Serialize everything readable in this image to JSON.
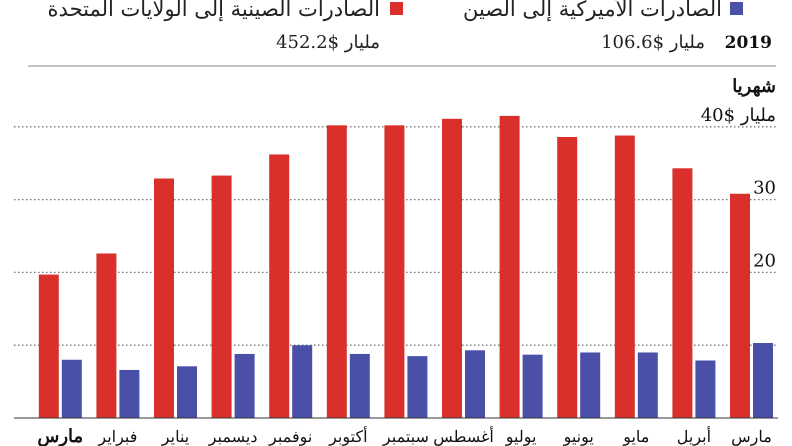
{
  "legend": {
    "us_exports": "الصادرات الأميركية إلى الصين",
    "china_exports": "الصادرات الصينية إلى الولايات المتحدة"
  },
  "totals": {
    "year": "2019",
    "us_total": "106.6$ مليار",
    "china_total": "452.2$ مليار"
  },
  "section_label": "شهريا",
  "colors": {
    "china_series": "#d9302b",
    "us_series": "#4a4fa8",
    "grid": "#777777"
  },
  "chart_data": {
    "type": "bar",
    "categories": [
      "مارس",
      "أبريل",
      "مايو",
      "يونيو",
      "يوليو",
      "أغسطس",
      "سبتمبر",
      "أكتوبر",
      "نوفمبر",
      "ديسمبر",
      "يناير",
      "فبراير",
      "مارس"
    ],
    "series": [
      {
        "name": "الصادرات الصينية إلى الولايات المتحدة",
        "color": "#d9302b",
        "values": [
          30.8,
          34.3,
          38.8,
          38.6,
          41.5,
          41.1,
          40.2,
          40.2,
          36.2,
          33.3,
          32.9,
          22.6,
          19.7
        ]
      },
      {
        "name": "الصادرات الأميركية إلى الصين",
        "color": "#4a4fa8",
        "values": [
          10.3,
          7.9,
          9.0,
          9.0,
          8.7,
          9.3,
          8.5,
          8.8,
          10.0,
          8.8,
          7.1,
          6.6,
          8.0
        ]
      }
    ],
    "y_ticks": [
      {
        "value": 10,
        "label": ""
      },
      {
        "value": 20,
        "label": "20"
      },
      {
        "value": 30,
        "label": "30"
      },
      {
        "value": 40,
        "label": "40$ مليار"
      }
    ],
    "ylim": [
      0,
      41
    ],
    "highlight_category_index": 12,
    "grid": true,
    "legend_position": "top"
  }
}
